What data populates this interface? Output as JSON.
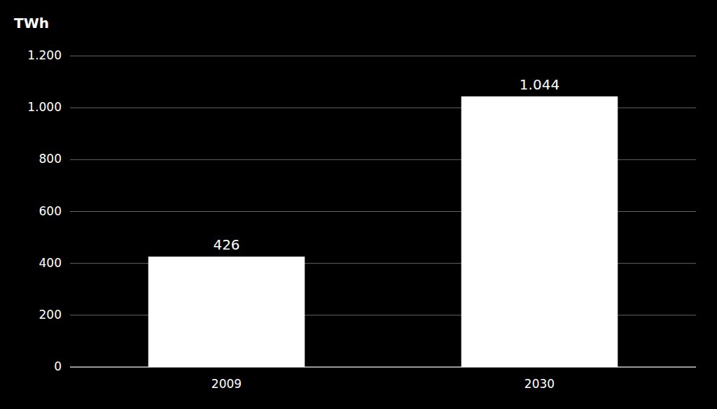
{
  "chart_data": {
    "type": "bar",
    "y_label": "TWh",
    "categories": [
      "2009",
      "2030"
    ],
    "values": [
      426,
      1044
    ],
    "value_labels": [
      "426",
      "1.044"
    ],
    "data_labels": true,
    "color": "#ffffff",
    "ylim": [
      0,
      1200
    ],
    "yticks": [
      0,
      200,
      400,
      600,
      800,
      {
        "value": 1000,
        "label": "1.000"
      },
      {
        "value": 1200,
        "label": "1.200"
      }
    ],
    "grid": true
  }
}
